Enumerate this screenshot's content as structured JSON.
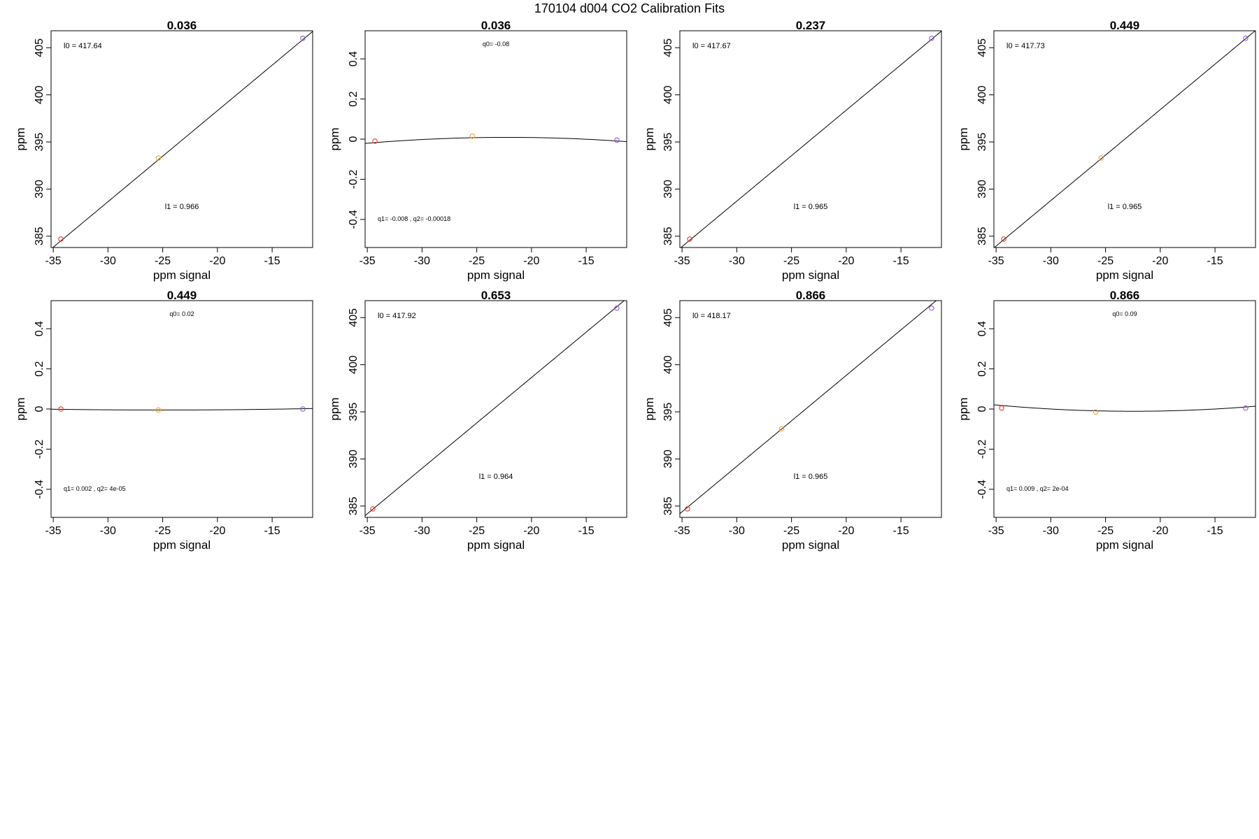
{
  "title": "170104   d004   CO2 Calibration Fits",
  "colors": {
    "point_low": "#e8392f",
    "point_mid": "#f2a33a",
    "point_high": "#8f5ccf",
    "line": "#000000",
    "frame": "#000000"
  },
  "chart_data": [
    {
      "type": "scatter",
      "fit": "linear",
      "title": "0.036",
      "xlabel": "ppm signal",
      "ylabel": "ppm",
      "xlim": [
        -35.2,
        -11.3
      ],
      "ylim": [
        383.8,
        406.8
      ],
      "xticks": [
        -35,
        -30,
        -25,
        -20,
        -15
      ],
      "yticks": [
        385,
        390,
        395,
        400,
        405
      ],
      "points": [
        {
          "x": -34.3,
          "y": 384.7,
          "color": "#e8392f"
        },
        {
          "x": -25.4,
          "y": 393.3,
          "color": "#f2a33a"
        },
        {
          "x": -12.2,
          "y": 406.0,
          "color": "#8f5ccf"
        }
      ],
      "line": {
        "intercept": 417.64,
        "slope": 0.966
      },
      "annotations": [
        {
          "text": "l0 =  417.64",
          "pos": "top-left",
          "size": "big"
        },
        {
          "text": "l1 =  0.966",
          "pos": "middle-bottom",
          "size": "big"
        }
      ]
    },
    {
      "type": "scatter",
      "fit": "quadratic-residual",
      "title": "0.036",
      "xlabel": "ppm signal",
      "ylabel": "ppm",
      "xlim": [
        -35.2,
        -11.3
      ],
      "ylim": [
        -0.54,
        0.54
      ],
      "xticks": [
        -35,
        -30,
        -25,
        -20,
        -15
      ],
      "yticks": [
        -0.4,
        -0.2,
        0.0,
        0.2,
        0.4
      ],
      "points": [
        {
          "x": -34.3,
          "y": -0.01,
          "color": "#e8392f"
        },
        {
          "x": -25.4,
          "y": 0.015,
          "color": "#f2a33a"
        },
        {
          "x": -12.2,
          "y": -0.005,
          "color": "#8f5ccf"
        }
      ],
      "curve": {
        "q0": -0.08,
        "q1": -0.008,
        "q2": -0.00018
      },
      "annotations": [
        {
          "text": "q0= -0.08",
          "pos": "top-center",
          "size": "small"
        },
        {
          "text": "q1= -0.008 , q2= -0.00018",
          "pos": "bottom-left",
          "size": "small"
        }
      ]
    },
    {
      "type": "scatter",
      "fit": "linear",
      "title": "0.237",
      "xlabel": "ppm signal",
      "ylabel": "ppm",
      "xlim": [
        -35.2,
        -11.3
      ],
      "ylim": [
        383.8,
        406.8
      ],
      "xticks": [
        -35,
        -30,
        -25,
        -20,
        -15
      ],
      "yticks": [
        385,
        390,
        395,
        400,
        405
      ],
      "points": [
        {
          "x": -34.3,
          "y": 384.7,
          "color": "#e8392f"
        },
        {
          "x": -12.2,
          "y": 406.0,
          "color": "#8f5ccf"
        }
      ],
      "line": {
        "intercept": 417.67,
        "slope": 0.965
      },
      "annotations": [
        {
          "text": "l0 =  417.67",
          "pos": "top-left",
          "size": "big"
        },
        {
          "text": "l1 =  0.965",
          "pos": "middle-bottom",
          "size": "big"
        }
      ]
    },
    {
      "type": "scatter",
      "fit": "linear",
      "title": "0.449",
      "xlabel": "ppm signal",
      "ylabel": "ppm",
      "xlim": [
        -35.2,
        -11.3
      ],
      "ylim": [
        383.8,
        406.8
      ],
      "xticks": [
        -35,
        -30,
        -25,
        -20,
        -15
      ],
      "yticks": [
        385,
        390,
        395,
        400,
        405
      ],
      "points": [
        {
          "x": -34.3,
          "y": 384.7,
          "color": "#e8392f"
        },
        {
          "x": -25.4,
          "y": 393.3,
          "color": "#f2a33a"
        },
        {
          "x": -12.2,
          "y": 406.0,
          "color": "#8f5ccf"
        }
      ],
      "line": {
        "intercept": 417.73,
        "slope": 0.965
      },
      "annotations": [
        {
          "text": "l0 =  417.73",
          "pos": "top-left",
          "size": "big"
        },
        {
          "text": "l1 =  0.965",
          "pos": "middle-bottom",
          "size": "big"
        }
      ]
    },
    {
      "type": "scatter",
      "fit": "quadratic-residual",
      "title": "0.449",
      "xlabel": "ppm signal",
      "ylabel": "ppm",
      "xlim": [
        -35.2,
        -11.3
      ],
      "ylim": [
        -0.54,
        0.54
      ],
      "xticks": [
        -35,
        -30,
        -25,
        -20,
        -15
      ],
      "yticks": [
        -0.4,
        -0.2,
        0.0,
        0.2,
        0.4
      ],
      "points": [
        {
          "x": -34.3,
          "y": 0.0,
          "color": "#e8392f"
        },
        {
          "x": -25.4,
          "y": -0.005,
          "color": "#f2a33a"
        },
        {
          "x": -12.2,
          "y": 0.0,
          "color": "#8f5ccf"
        }
      ],
      "curve": {
        "q0": 0.02,
        "q1": 0.002,
        "q2": 4e-05
      },
      "annotations": [
        {
          "text": "q0= 0.02",
          "pos": "top-center",
          "size": "small"
        },
        {
          "text": "q1= 0.002 , q2= 4e-05",
          "pos": "bottom-left",
          "size": "small"
        }
      ]
    },
    {
      "type": "scatter",
      "fit": "linear",
      "title": "0.653",
      "xlabel": "ppm signal",
      "ylabel": "ppm",
      "xlim": [
        -35.2,
        -11.3
      ],
      "ylim": [
        383.8,
        406.8
      ],
      "xticks": [
        -35,
        -30,
        -25,
        -20,
        -15
      ],
      "yticks": [
        385,
        390,
        395,
        400,
        405
      ],
      "points": [
        {
          "x": -34.5,
          "y": 384.7,
          "color": "#e8392f"
        },
        {
          "x": -12.2,
          "y": 406.0,
          "color": "#8f5ccf"
        }
      ],
      "line": {
        "intercept": 417.92,
        "slope": 0.964
      },
      "annotations": [
        {
          "text": "l0 =  417.92",
          "pos": "top-left",
          "size": "big"
        },
        {
          "text": "l1 =  0.964",
          "pos": "middle-bottom",
          "size": "big"
        }
      ]
    },
    {
      "type": "scatter",
      "fit": "linear",
      "title": "0.866",
      "xlabel": "ppm signal",
      "ylabel": "ppm",
      "xlim": [
        -35.2,
        -11.3
      ],
      "ylim": [
        383.8,
        406.8
      ],
      "xticks": [
        -35,
        -30,
        -25,
        -20,
        -15
      ],
      "yticks": [
        385,
        390,
        395,
        400,
        405
      ],
      "points": [
        {
          "x": -34.5,
          "y": 384.7,
          "color": "#e8392f"
        },
        {
          "x": -25.9,
          "y": 393.2,
          "color": "#f2a33a"
        },
        {
          "x": -12.2,
          "y": 406.0,
          "color": "#8f5ccf"
        }
      ],
      "line": {
        "intercept": 418.17,
        "slope": 0.965
      },
      "annotations": [
        {
          "text": "l0 =  418.17",
          "pos": "top-left",
          "size": "big"
        },
        {
          "text": "l1 =  0.965",
          "pos": "middle-bottom",
          "size": "big"
        }
      ]
    },
    {
      "type": "scatter",
      "fit": "quadratic-residual",
      "title": "0.866",
      "xlabel": "ppm signal",
      "ylabel": "ppm",
      "xlim": [
        -35.2,
        -11.3
      ],
      "ylim": [
        -0.54,
        0.54
      ],
      "xticks": [
        -35,
        -30,
        -25,
        -20,
        -15
      ],
      "yticks": [
        -0.4,
        -0.2,
        0.0,
        0.2,
        0.4
      ],
      "points": [
        {
          "x": -34.5,
          "y": 0.005,
          "color": "#e8392f"
        },
        {
          "x": -25.9,
          "y": -0.015,
          "color": "#f2a33a"
        },
        {
          "x": -12.2,
          "y": 0.005,
          "color": "#8f5ccf"
        }
      ],
      "curve": {
        "q0": 0.09,
        "q1": 0.009,
        "q2": 0.0002
      },
      "annotations": [
        {
          "text": "q0= 0.09",
          "pos": "top-center",
          "size": "small"
        },
        {
          "text": "q1= 0.009 , q2= 2e-04",
          "pos": "bottom-left",
          "size": "small"
        }
      ]
    }
  ]
}
